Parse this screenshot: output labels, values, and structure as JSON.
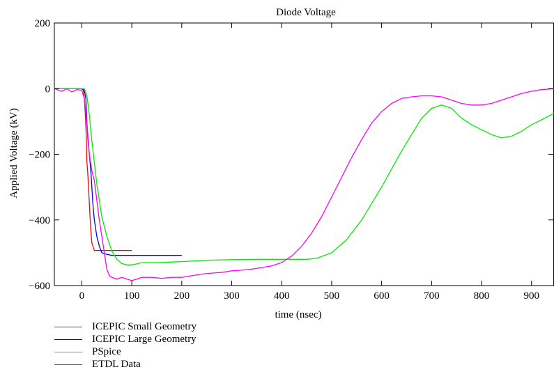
{
  "chart_data": {
    "type": "line",
    "title": "Diode Voltage",
    "xlabel": "time (nsec)",
    "ylabel": "Applied Voltage (kV)",
    "xlim": [
      -55,
      945
    ],
    "ylim": [
      -600,
      200
    ],
    "xticks": [
      0,
      100,
      200,
      300,
      400,
      500,
      600,
      700,
      800,
      900
    ],
    "yticks": [
      200,
      0,
      -200,
      -400,
      -600
    ],
    "ytick_labels": [
      "200",
      "0",
      "−200",
      "−400",
      "−600"
    ],
    "grid": false,
    "legend_position": "bottom-left",
    "series": [
      {
        "name": "ICEPIC Small Geometry",
        "color": "#ff0000",
        "x": [
          -55,
          0,
          3,
          5,
          7,
          9,
          10,
          12,
          14,
          16,
          18,
          20,
          25,
          100
        ],
        "y": [
          0,
          0,
          -5,
          -30,
          -80,
          -150,
          -220,
          -260,
          -320,
          -380,
          -430,
          -470,
          -493,
          -493
        ]
      },
      {
        "name": "ICEPIC Large Geometry",
        "color": "#0000ff",
        "x": [
          -55,
          0,
          5,
          8,
          10,
          12,
          15,
          18,
          20,
          22,
          25,
          30,
          35,
          40,
          50,
          60,
          80,
          100,
          150,
          200
        ],
        "y": [
          0,
          0,
          -5,
          -30,
          -100,
          -150,
          -200,
          -250,
          -300,
          -350,
          -400,
          -450,
          -480,
          -500,
          -505,
          -508,
          -508,
          -508,
          -508,
          -508
        ]
      },
      {
        "name": "PSpice",
        "color": "#00ee00",
        "x": [
          -55,
          5,
          10,
          15,
          20,
          30,
          40,
          50,
          60,
          70,
          80,
          90,
          100,
          110,
          120,
          150,
          200,
          250,
          300,
          350,
          400,
          450,
          470,
          500,
          530,
          560,
          600,
          640,
          680,
          700,
          720,
          740,
          760,
          780,
          800,
          820,
          840,
          860,
          880,
          900,
          920,
          945
        ],
        "y": [
          0,
          0,
          -20,
          -80,
          -160,
          -290,
          -390,
          -450,
          -495,
          -520,
          -533,
          -537,
          -537,
          -534,
          -530,
          -530,
          -527,
          -523,
          -521,
          -520,
          -520,
          -520,
          -517,
          -500,
          -460,
          -400,
          -300,
          -190,
          -90,
          -60,
          -50,
          -60,
          -90,
          -110,
          -125,
          -140,
          -150,
          -145,
          -130,
          -110,
          -95,
          -75
        ]
      },
      {
        "name": "ETDL Data",
        "color": "#ff00ff",
        "x": [
          -55,
          -40,
          -30,
          -20,
          -10,
          0,
          5,
          10,
          15,
          20,
          25,
          30,
          35,
          40,
          45,
          50,
          55,
          60,
          70,
          80,
          90,
          100,
          110,
          120,
          140,
          160,
          180,
          200,
          220,
          240,
          260,
          280,
          300,
          320,
          340,
          360,
          380,
          400,
          420,
          440,
          460,
          480,
          500,
          520,
          540,
          560,
          580,
          600,
          620,
          640,
          660,
          680,
          700,
          720,
          740,
          760,
          780,
          800,
          820,
          840,
          860,
          880,
          900,
          920,
          945
        ],
        "y": [
          0,
          -8,
          0,
          -10,
          -3,
          -5,
          -30,
          -100,
          -200,
          -250,
          -280,
          -340,
          -400,
          -450,
          -500,
          -550,
          -570,
          -575,
          -580,
          -575,
          -580,
          -585,
          -580,
          -575,
          -575,
          -578,
          -575,
          -575,
          -570,
          -565,
          -562,
          -560,
          -555,
          -553,
          -550,
          -545,
          -540,
          -530,
          -510,
          -480,
          -440,
          -390,
          -330,
          -270,
          -210,
          -155,
          -105,
          -70,
          -45,
          -30,
          -25,
          -22,
          -22,
          -25,
          -35,
          -45,
          -50,
          -50,
          -45,
          -35,
          -25,
          -15,
          -8,
          -3,
          0
        ]
      }
    ]
  }
}
